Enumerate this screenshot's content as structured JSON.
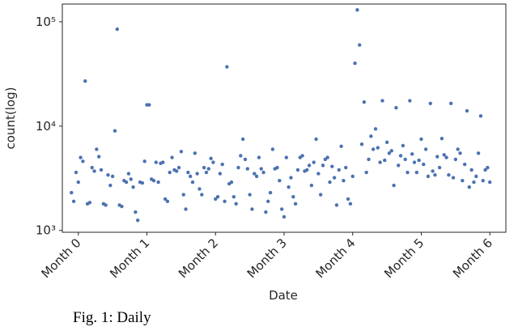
{
  "chart_data": {
    "type": "scatter",
    "caption": "Fig. 1: Daily",
    "xlabel": "Date",
    "ylabel": "count(log)",
    "log_y": true,
    "color": "#4c72b0",
    "xlim": [
      -7,
      187
    ],
    "ylim": [
      960,
      148000
    ],
    "xticks": [
      {
        "value": 0,
        "label": "Month 0"
      },
      {
        "value": 30,
        "label": "Month 1"
      },
      {
        "value": 60,
        "label": "Month 2"
      },
      {
        "value": 90,
        "label": "Month 3"
      },
      {
        "value": 120,
        "label": "Month 4"
      },
      {
        "value": 150,
        "label": "Month 5"
      },
      {
        "value": 180,
        "label": "Month 6"
      }
    ],
    "yticks": [
      {
        "value": 1000,
        "label": "10³"
      },
      {
        "value": 10000,
        "label": "10⁴"
      },
      {
        "value": 100000,
        "label": "10⁵"
      }
    ],
    "x": [
      -3,
      -2,
      -1,
      0,
      1,
      2,
      3,
      4,
      5,
      6,
      7,
      8,
      9,
      10,
      11,
      12,
      13,
      14,
      15,
      16,
      17,
      18,
      19,
      20,
      21,
      22,
      23,
      24,
      25,
      26,
      27,
      28,
      29,
      30,
      31,
      32,
      33,
      34,
      35,
      36,
      37,
      38,
      39,
      40,
      41,
      42,
      43,
      44,
      45,
      46,
      47,
      48,
      49,
      50,
      51,
      52,
      53,
      54,
      55,
      56,
      57,
      58,
      59,
      60,
      61,
      62,
      63,
      64,
      65,
      66,
      67,
      68,
      69,
      70,
      71,
      72,
      73,
      74,
      75,
      76,
      77,
      78,
      79,
      80,
      81,
      82,
      83,
      84,
      85,
      86,
      87,
      88,
      89,
      90,
      91,
      92,
      93,
      94,
      95,
      96,
      97,
      98,
      99,
      100,
      101,
      102,
      103,
      104,
      105,
      106,
      107,
      108,
      109,
      110,
      111,
      112,
      113,
      114,
      115,
      116,
      117,
      118,
      119,
      120,
      121,
      122,
      123,
      124,
      125,
      126,
      127,
      128,
      129,
      130,
      131,
      132,
      133,
      134,
      135,
      136,
      137,
      138,
      139,
      140,
      141,
      142,
      143,
      144,
      145,
      146,
      147,
      148,
      149,
      150,
      151,
      152,
      153,
      154,
      155,
      156,
      157,
      158,
      159,
      160,
      161,
      162,
      163,
      164,
      165,
      166,
      167,
      168,
      169,
      170,
      171,
      172,
      173,
      174,
      175,
      176,
      177,
      178,
      179,
      180
    ],
    "values": [
      2300,
      1900,
      3600,
      2900,
      5000,
      4600,
      27000,
      1800,
      1850,
      4000,
      3700,
      6000,
      5100,
      3800,
      1800,
      1750,
      3400,
      2700,
      3300,
      9000,
      85000,
      1750,
      1700,
      3000,
      2900,
      3500,
      3100,
      2600,
      1500,
      1250,
      2900,
      2850,
      4600,
      16000,
      16000,
      3100,
      3000,
      4500,
      2900,
      4400,
      4500,
      2000,
      1900,
      3600,
      5000,
      3800,
      3700,
      4000,
      5700,
      2200,
      1600,
      3600,
      3300,
      2900,
      5500,
      3500,
      2500,
      2200,
      4000,
      3600,
      3900,
      4900,
      4500,
      2000,
      2100,
      3500,
      4300,
      1900,
      37000,
      2800,
      2900,
      2100,
      1800,
      4000,
      5200,
      7500,
      4800,
      3900,
      2200,
      1600,
      3500,
      3300,
      5000,
      3900,
      3600,
      1500,
      1900,
      2300,
      6000,
      3900,
      4000,
      3000,
      1600,
      1350,
      5000,
      2600,
      3200,
      2100,
      1800,
      3800,
      5000,
      5200,
      3700,
      3800,
      4200,
      2700,
      4500,
      7500,
      3500,
      2200,
      4200,
      4800,
      5000,
      2900,
      4100,
      3200,
      1750,
      3800,
      6400,
      3000,
      4000,
      2000,
      1800,
      3300,
      40000,
      130000,
      60000,
      6700,
      17000,
      3600,
      4800,
      8000,
      6000,
      9400,
      6200,
      4500,
      17500,
      4700,
      7000,
      5500,
      5800,
      2700,
      15000,
      4200,
      5200,
      6500,
      4800,
      3600,
      17500,
      5400,
      4500,
      3600,
      4700,
      7500,
      4300,
      6000,
      3300,
      16500,
      3700,
      3400,
      5100,
      4000,
      7600,
      5300,
      5000,
      3400,
      16500,
      3200,
      4800,
      6000,
      5500,
      3000,
      4300,
      14000,
      2600,
      3800,
      2900,
      3300,
      5500,
      12500,
      3000,
      3800,
      4000,
      2900
    ]
  }
}
